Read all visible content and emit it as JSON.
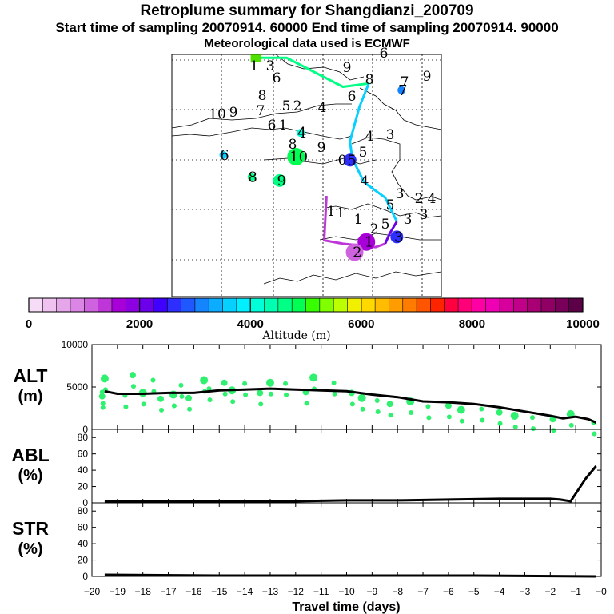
{
  "header": {
    "title": "Retroplume summary for Shangdianzi_200709",
    "subtitle": "Start time of sampling 20070914. 60000     End time of sampling 20070914. 90000",
    "met_note": "Meteorological data used is ECMWF"
  },
  "colorbar": {
    "xlabel": "Altitude (m)",
    "ticks": [
      "0",
      "2000",
      "4000",
      "6000",
      "8000",
      "10000"
    ],
    "range": [
      0,
      10000
    ],
    "colors": [
      "#f7dcf7",
      "#efc2ef",
      "#e6a6ea",
      "#db86e4",
      "#cf62de",
      "#bf36d8",
      "#a700d8",
      "#8c00e2",
      "#6c00ea",
      "#4000ff",
      "#2e2eff",
      "#2058ff",
      "#1484ff",
      "#0cacff",
      "#06d0ff",
      "#00f0ff",
      "#00ffd8",
      "#00ffb0",
      "#00ff84",
      "#00ff52",
      "#38ff00",
      "#80ff00",
      "#bcff00",
      "#f0f000",
      "#ffd800",
      "#ffbc00",
      "#ff9c00",
      "#ff7c00",
      "#ff5400",
      "#ff2400",
      "#ff0040",
      "#ff0078",
      "#ff00a4",
      "#f000b4",
      "#d8009c",
      "#c00088",
      "#a80074",
      "#900064",
      "#78005a",
      "#5c0048"
    ]
  },
  "map": {
    "cluster_labels": [
      "1",
      "2",
      "3",
      "4",
      "5",
      "6",
      "7",
      "8",
      "9",
      "10",
      "0"
    ],
    "clusters": [
      {
        "label": "1",
        "lon": 117.3,
        "lat": 40.7,
        "alt_m": 1500,
        "size": "large"
      },
      {
        "label": "2",
        "lon": 116.8,
        "lat": 40.1,
        "alt_m": 1200,
        "size": "large"
      },
      {
        "label": "3",
        "lon": 118.6,
        "lat": 41.0,
        "alt_m": 2500,
        "size": "medium"
      },
      {
        "label": "4",
        "lon": 114.5,
        "lat": 47.1,
        "alt_m": 4200,
        "size": "small"
      },
      {
        "label": "5",
        "lon": 116.6,
        "lat": 45.5,
        "alt_m": 2500,
        "size": "medium"
      },
      {
        "label": "6",
        "lon": 111.2,
        "lat": 45.8,
        "alt_m": 3600,
        "size": "small"
      },
      {
        "label": "7",
        "lon": 118.8,
        "lat": 49.6,
        "alt_m": 3000,
        "size": "small"
      },
      {
        "label": "8",
        "lon": 112.4,
        "lat": 44.5,
        "alt_m": 4700,
        "size": "small"
      },
      {
        "label": "9",
        "lon": 113.6,
        "lat": 44.3,
        "alt_m": 4600,
        "size": "medium"
      },
      {
        "label": "10",
        "lon": 114.3,
        "lat": 45.7,
        "alt_m": 4800,
        "size": "large"
      }
    ],
    "paths": [
      {
        "name": "green-path",
        "alt_m": 4500,
        "points": [
          [
            112.5,
            51.5
          ],
          [
            113.9,
            51.5
          ],
          [
            116.3,
            49.8
          ],
          [
            117.4,
            50.0
          ]
        ]
      },
      {
        "name": "cyan-path",
        "alt_m": 3500,
        "points": [
          [
            117.4,
            50.0
          ],
          [
            117.0,
            48.6
          ],
          [
            116.6,
            46.6
          ],
          [
            116.7,
            45.6
          ],
          [
            117.2,
            44.2
          ],
          [
            118.1,
            43.3
          ],
          [
            118.6,
            41.9
          ]
        ]
      },
      {
        "name": "blue-path",
        "alt_m": 2200,
        "points": [
          [
            118.6,
            41.9
          ],
          [
            118.3,
            41.2
          ],
          [
            118.1,
            40.6
          ]
        ]
      },
      {
        "name": "purple-path",
        "alt_m": 1300,
        "points": [
          [
            118.1,
            40.6
          ],
          [
            117.7,
            40.4
          ],
          [
            116.3,
            40.6
          ],
          [
            115.5,
            40.8
          ],
          [
            115.6,
            43.4
          ]
        ]
      }
    ]
  },
  "chart_data": [
    {
      "type": "scatter",
      "title": "ALT",
      "ylabel": "ALT (m)",
      "xlabel": "Travel time (days)",
      "xlim": [
        -20,
        0
      ],
      "ylim": [
        0,
        10000
      ],
      "yticks": [
        "0",
        "5000",
        "10000"
      ],
      "x": [
        -19.6,
        -19.6,
        -19.5,
        -18.7,
        -18.4,
        -18.0,
        -17.6,
        -17.3,
        -16.8,
        -16.5,
        -16.2,
        -15.6,
        -15.4,
        -14.8,
        -14.5,
        -14.0,
        -13.4,
        -13.0,
        -12.4,
        -11.6,
        -11.3,
        -10.5,
        -9.8,
        -9.4,
        -8.8,
        -8.3,
        -7.5,
        -6.8,
        -6.0,
        -5.5,
        -4.7,
        -4.0,
        -3.4,
        -2.7,
        -1.9,
        -1.2,
        -0.3
      ],
      "y": [
        4400,
        3900,
        6000,
        4000,
        6400,
        4300,
        5800,
        3600,
        4100,
        5200,
        3700,
        5800,
        4800,
        5500,
        4600,
        5400,
        4300,
        5500,
        5400,
        4400,
        6100,
        5500,
        4300,
        3700,
        3400,
        3000,
        3300,
        2700,
        2800,
        2300,
        2400,
        2000,
        1600,
        1400,
        1200,
        1800,
        800
      ],
      "line": {
        "x": [
          -19.5,
          -19,
          -18,
          -17,
          -16,
          -15,
          -14,
          -13,
          -12,
          -11,
          -10,
          -9,
          -8,
          -7,
          -6,
          -5,
          -4,
          -3,
          -2,
          -1.5,
          -1,
          -0.5,
          -0.2
        ],
        "y": [
          4500,
          4200,
          4200,
          4300,
          4300,
          4600,
          4700,
          4800,
          4700,
          4600,
          4500,
          4100,
          3800,
          3300,
          3200,
          3000,
          2600,
          2100,
          1600,
          1300,
          1500,
          1200,
          800
        ]
      }
    },
    {
      "type": "line",
      "title": "ABL",
      "ylabel": "ABL (%)",
      "xlabel": "Travel time (days)",
      "xlim": [
        -20,
        0
      ],
      "ylim": [
        0,
        90
      ],
      "yticks": [
        "0",
        "20",
        "40",
        "60",
        "80"
      ],
      "series": [
        {
          "name": "ABL",
          "x": [
            -19.5,
            -18,
            -16,
            -14,
            -12,
            -10,
            -8,
            -6,
            -4,
            -2,
            -1.6,
            -1.2,
            -0.6,
            -0.2
          ],
          "y": [
            2,
            2,
            2,
            2,
            2,
            3,
            3,
            4,
            5,
            5,
            4,
            2,
            30,
            45
          ]
        }
      ]
    },
    {
      "type": "line",
      "title": "STR",
      "ylabel": "STR (%)",
      "xlabel": "Travel time (days)",
      "xlim": [
        -20,
        0
      ],
      "ylim": [
        0,
        90
      ],
      "yticks": [
        "0",
        "20",
        "40",
        "60",
        "80"
      ],
      "xticks": [
        "−20",
        "−19",
        "−18",
        "−17",
        "−16",
        "−15",
        "−14",
        "−13",
        "−12",
        "−11",
        "−10",
        "−9",
        "−8",
        "−7",
        "−6",
        "−5",
        "−4",
        "−3",
        "−2",
        "−1",
        "−0"
      ],
      "series": [
        {
          "name": "STR",
          "x": [
            -19.5,
            -15,
            -10,
            -5,
            -0.2
          ],
          "y": [
            2,
            1,
            1,
            1,
            0
          ]
        }
      ]
    }
  ],
  "panels": {
    "alt_label": "ALT",
    "alt_unit": "(m)",
    "abl_label": "ABL",
    "abl_unit": "(%)",
    "str_label": "STR",
    "str_unit": "(%)",
    "xlabel": "Travel time (days)"
  }
}
